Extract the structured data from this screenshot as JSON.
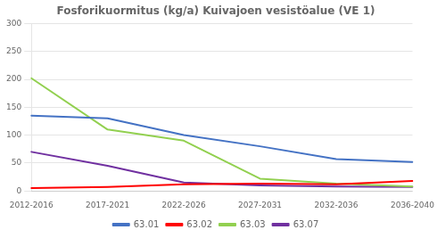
{
  "chart_data": {
    "type": "line",
    "title": "Fosforikuormitus (kg/a) Kuivajoen vesistöalue (VE 1)",
    "categories": [
      "2012-2016",
      "2017-2021",
      "2022-2026",
      "2027-2031",
      "2032-2036",
      "2036-2040"
    ],
    "series": [
      {
        "name": "63.01",
        "color": "#4472C4",
        "values": [
          135,
          130,
          100,
          80,
          57,
          52
        ]
      },
      {
        "name": "63.02",
        "color": "#FF0000",
        "values": [
          5,
          7,
          12,
          13,
          12,
          18
        ]
      },
      {
        "name": "63.03",
        "color": "#92D050",
        "values": [
          202,
          110,
          90,
          22,
          13,
          8
        ]
      },
      {
        "name": "63.07",
        "color": "#7030A0",
        "values": [
          70,
          45,
          15,
          10,
          8,
          7
        ]
      }
    ],
    "ylim": [
      0,
      300
    ],
    "yticks": [
      0,
      50,
      100,
      150,
      200,
      250,
      300
    ],
    "grid": true,
    "legend": "bottom"
  }
}
